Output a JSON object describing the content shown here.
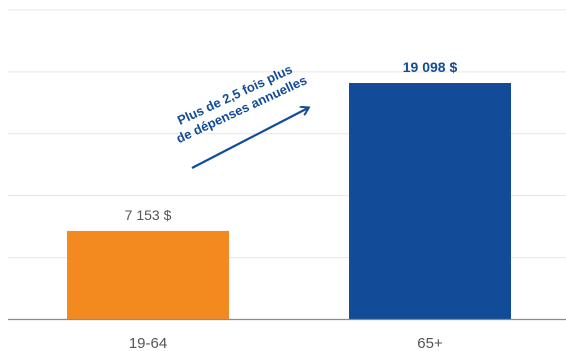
{
  "chart_data": {
    "type": "bar",
    "categories": [
      "19-64",
      "65+"
    ],
    "values": [
      7153,
      19098
    ],
    "value_labels": [
      "7 153 $",
      "19 098 $"
    ],
    "colors": [
      "#f28a20",
      "#124c98"
    ],
    "value_label_colors": [
      "#555555",
      "#124c98"
    ],
    "value_label_weights": [
      "normal",
      "bold"
    ],
    "ylim": [
      0,
      25000
    ],
    "grid": true,
    "gridlines": [
      5000,
      10000,
      15000,
      20000,
      25000
    ],
    "annotation": {
      "lines": [
        "Plus de 2,5 fois plus",
        "de dépenses annuelles"
      ],
      "color": "#124c98"
    }
  }
}
